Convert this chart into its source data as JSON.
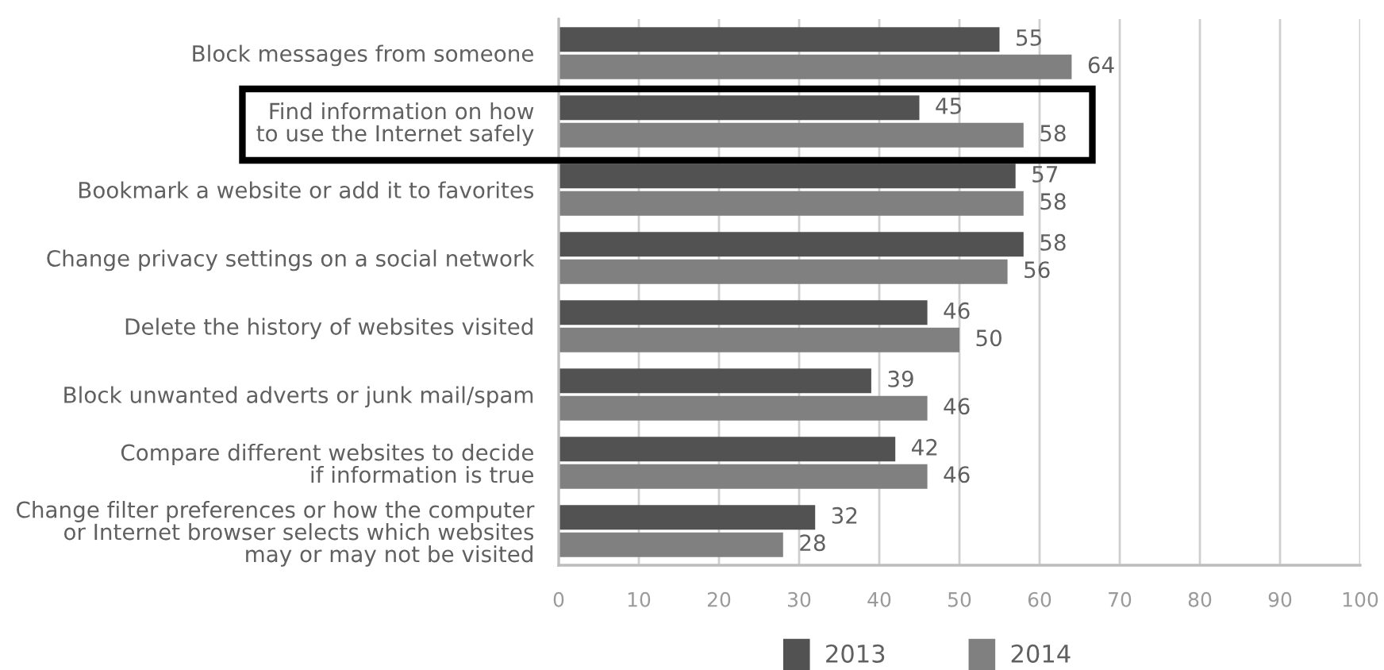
{
  "chart_data": {
    "type": "bar",
    "orientation": "horizontal",
    "categories": [
      "Block messages from someone",
      "Find information on how\nto use the Internet safely",
      "Bookmark a website or add it to favorites",
      "Change privacy settings on a social network",
      "Delete the history of websites visited",
      "Block unwanted adverts or junk mail/spam",
      "Compare different websites to decide\nif information is true",
      "Change filter preferences or how the computer\nor Internet browser selects which websites\nmay or may not be visited"
    ],
    "series": [
      {
        "name": "2013",
        "color": "#525252",
        "values": [
          55,
          45,
          57,
          58,
          46,
          39,
          42,
          32
        ]
      },
      {
        "name": "2014",
        "color": "#808080",
        "values": [
          64,
          58,
          58,
          56,
          50,
          46,
          46,
          28
        ]
      }
    ],
    "xlim": [
      0,
      100
    ],
    "xticks": [
      0,
      10,
      20,
      30,
      40,
      50,
      60,
      70,
      80,
      90,
      100
    ],
    "grid": "x",
    "legend": "bottom",
    "data_labels": true
  }
}
